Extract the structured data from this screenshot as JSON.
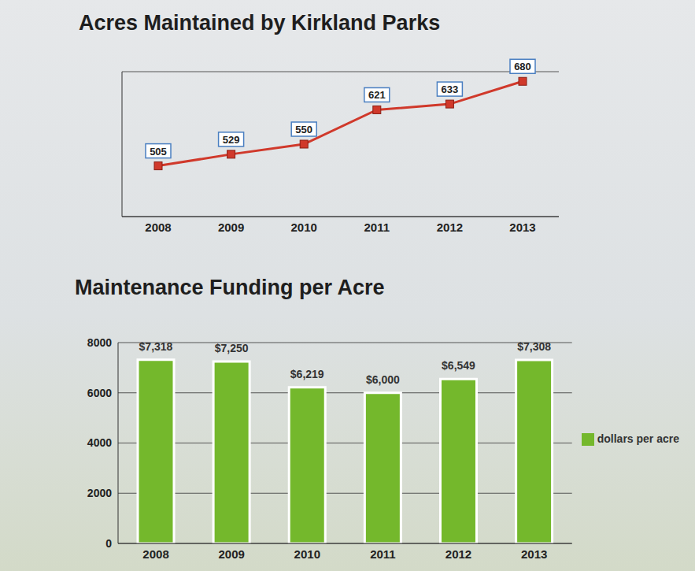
{
  "chart_data": [
    {
      "type": "line",
      "title": "Acres Maintained by Kirkland Parks",
      "categories": [
        "2008",
        "2009",
        "2010",
        "2011",
        "2012",
        "2013"
      ],
      "values": [
        505,
        529,
        550,
        621,
        633,
        680
      ],
      "color": "#d0392b",
      "marker": "square",
      "data_labels": true,
      "ylim": [
        400,
        700
      ],
      "yticks": [
        400,
        450,
        500,
        550,
        600,
        650,
        700
      ],
      "grid": true,
      "tick_labels": "x"
    },
    {
      "type": "bar",
      "title": "Maintenance Funding per Acre",
      "categories": [
        "2008",
        "2009",
        "2010",
        "2011",
        "2012",
        "2013"
      ],
      "series": [
        {
          "name": "dollars per acre",
          "color": "#74b82c",
          "values": [
            7318,
            7250,
            6219,
            6000,
            6549,
            7308
          ],
          "value_labels": [
            "$7,318",
            "$7,250",
            "$6,219",
            "$6,000",
            "$6,549",
            "$7,308"
          ]
        }
      ],
      "data_labels": true,
      "ylim": [
        0,
        8000
      ],
      "yticks": [
        0,
        2000,
        4000,
        6000,
        8000
      ],
      "grid": true,
      "legend": "right"
    }
  ]
}
